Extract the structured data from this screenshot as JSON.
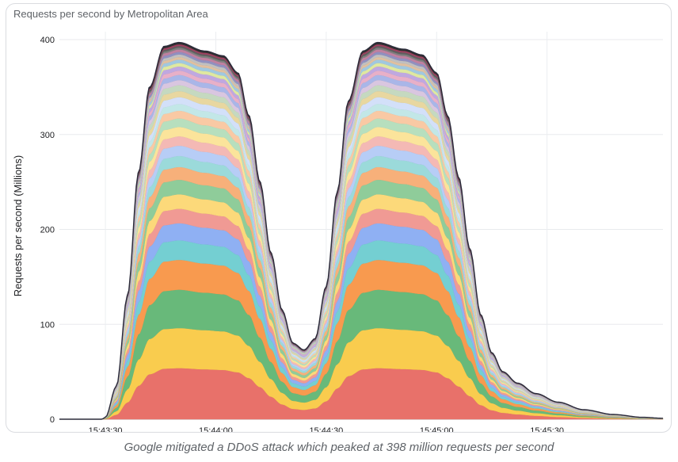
{
  "caption": "Google mitigated a DDoS attack which peaked at 398 million requests per second",
  "chart_data": {
    "type": "area",
    "stacked": true,
    "title": "Requests per second by Metropolitan Area",
    "ylabel": "Requests per second (Millions)",
    "xlabel": "",
    "ylim": [
      0,
      400
    ],
    "yticks": [
      0,
      100,
      200,
      300,
      400
    ],
    "xticks": [
      "15:43:30",
      "15:44:00",
      "15:44:30",
      "15:45:00",
      "15:45:30"
    ],
    "x_domain_seconds": [
      -12.5,
      151.5
    ],
    "grid": true,
    "legend": "none",
    "peak_total": 398,
    "total_profile": [
      {
        "t": -12.5,
        "total": 0
      },
      {
        "t": -1,
        "total": 0
      },
      {
        "t": 0,
        "total": 2
      },
      {
        "t": 3,
        "total": 35
      },
      {
        "t": 6,
        "total": 130
      },
      {
        "t": 9,
        "total": 260
      },
      {
        "t": 12,
        "total": 350
      },
      {
        "t": 16,
        "total": 393
      },
      {
        "t": 20,
        "total": 397
      },
      {
        "t": 27,
        "total": 388
      },
      {
        "t": 32,
        "total": 383
      },
      {
        "t": 36,
        "total": 365
      },
      {
        "t": 39,
        "total": 320
      },
      {
        "t": 42,
        "total": 250
      },
      {
        "t": 45,
        "total": 175
      },
      {
        "t": 48,
        "total": 115
      },
      {
        "t": 51,
        "total": 80
      },
      {
        "t": 54,
        "total": 73
      },
      {
        "t": 57,
        "total": 85
      },
      {
        "t": 60,
        "total": 140
      },
      {
        "t": 63,
        "total": 240
      },
      {
        "t": 66,
        "total": 335
      },
      {
        "t": 70,
        "total": 388
      },
      {
        "t": 74,
        "total": 397
      },
      {
        "t": 81,
        "total": 390
      },
      {
        "t": 86,
        "total": 384
      },
      {
        "t": 90,
        "total": 365
      },
      {
        "t": 93,
        "total": 320
      },
      {
        "t": 96,
        "total": 255
      },
      {
        "t": 99,
        "total": 180
      },
      {
        "t": 102,
        "total": 110
      },
      {
        "t": 105,
        "total": 70
      },
      {
        "t": 108,
        "total": 50
      },
      {
        "t": 112,
        "total": 38
      },
      {
        "t": 117,
        "total": 27
      },
      {
        "t": 123,
        "total": 18
      },
      {
        "t": 130,
        "total": 10
      },
      {
        "t": 138,
        "total": 5
      },
      {
        "t": 146,
        "total": 2
      },
      {
        "t": 151.5,
        "total": 1
      }
    ],
    "series_peak_values": [
      60,
      47,
      45,
      35,
      23,
      20,
      17,
      17,
      17,
      15,
      13,
      12,
      11,
      11,
      10,
      9,
      8,
      8,
      7,
      7,
      6,
      6,
      5,
      5,
      4,
      4,
      3,
      3,
      3,
      3,
      2,
      2,
      2,
      2
    ],
    "series_colors": [
      "#e8716a",
      "#f9cc4e",
      "#68b97a",
      "#f89a4f",
      "#74cfd2",
      "#8fb0f3",
      "#f09a94",
      "#fcd97a",
      "#8fcc9a",
      "#f7b07a",
      "#9bdada",
      "#b7cdf6",
      "#f4b9b5",
      "#fbe49b",
      "#b7dfbe",
      "#f9c9a4",
      "#c2e7e7",
      "#d3e0f9",
      "#e8d7a0",
      "#c5d9c0",
      "#d9c6e0",
      "#a9b6e8",
      "#e8b0c8",
      "#bfa8e0",
      "#dfe8a0",
      "#a0c8e0",
      "#e0c0a0",
      "#c0c0c0",
      "#9090c0",
      "#c080a0",
      "#808080",
      "#606060",
      "#a04060",
      "#303030"
    ]
  }
}
